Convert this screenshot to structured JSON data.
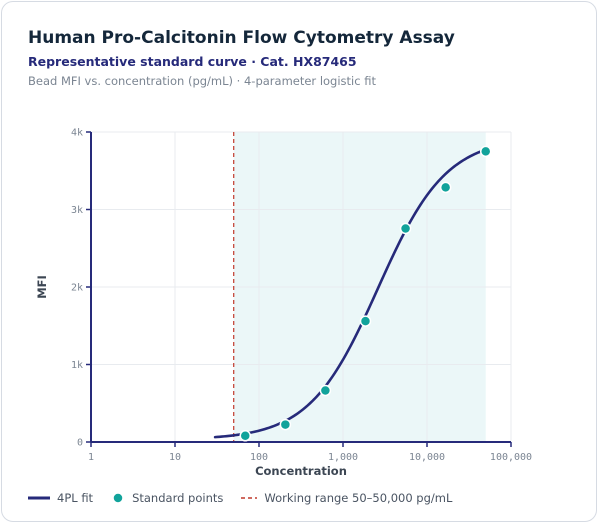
{
  "header": {
    "title": "Human Pro-Calcitonin Flow Cytometry Assay",
    "subtitle": "Representative standard curve · Cat. HX87465",
    "caption": "Bead MFI vs. concentration (pg/mL) · 4-parameter logistic fit"
  },
  "colors": {
    "fit_line": "#262a7a",
    "points": "#11a39b",
    "points_stroke": "#ffffff",
    "working_range_line": "#c0392b",
    "working_range_fill": "#ebf7f8",
    "grid": "#e8ebef",
    "axis": "#262a7a"
  },
  "chart_data": {
    "type": "scatter",
    "x_scale": "log",
    "xlabel": "Concentration",
    "ylabel": "MFI",
    "xlim": [
      1,
      100000
    ],
    "ylim": [
      0,
      4000
    ],
    "x_ticks": [
      {
        "value": 1,
        "label": "1"
      },
      {
        "value": 10,
        "label": "10"
      },
      {
        "value": 100,
        "label": "100"
      },
      {
        "value": 1000,
        "label": "1,000"
      },
      {
        "value": 10000,
        "label": "10,000"
      },
      {
        "value": 100000,
        "label": "100,000"
      }
    ],
    "y_ticks": [
      {
        "value": 0,
        "label": "0"
      },
      {
        "value": 1000,
        "label": "1k"
      },
      {
        "value": 2000,
        "label": "2k"
      },
      {
        "value": 3000,
        "label": "3k"
      },
      {
        "value": 4000,
        "label": "4k"
      }
    ],
    "grid": true,
    "working_range": [
      50,
      50000
    ],
    "fit_range": [
      30,
      50000
    ],
    "series": [
      {
        "name": "Standard points",
        "kind": "scatter",
        "x": [
          68.6,
          206,
          617,
          1852,
          5556,
          16667,
          50000
        ],
        "y": [
          80,
          225,
          665,
          1560,
          2755,
          3285,
          3750
        ]
      },
      {
        "name": "4PL fit",
        "kind": "line",
        "fit": {
          "model": "4PL",
          "bottom": 30,
          "top": 3930,
          "ec50": 2600,
          "hill": 1.07
        }
      }
    ]
  },
  "legend": {
    "items": [
      {
        "key": "fit",
        "label": "4PL fit"
      },
      {
        "key": "points",
        "label": "Standard points"
      },
      {
        "key": "range",
        "label": "Working range 50–50,000 pg/mL"
      }
    ]
  }
}
